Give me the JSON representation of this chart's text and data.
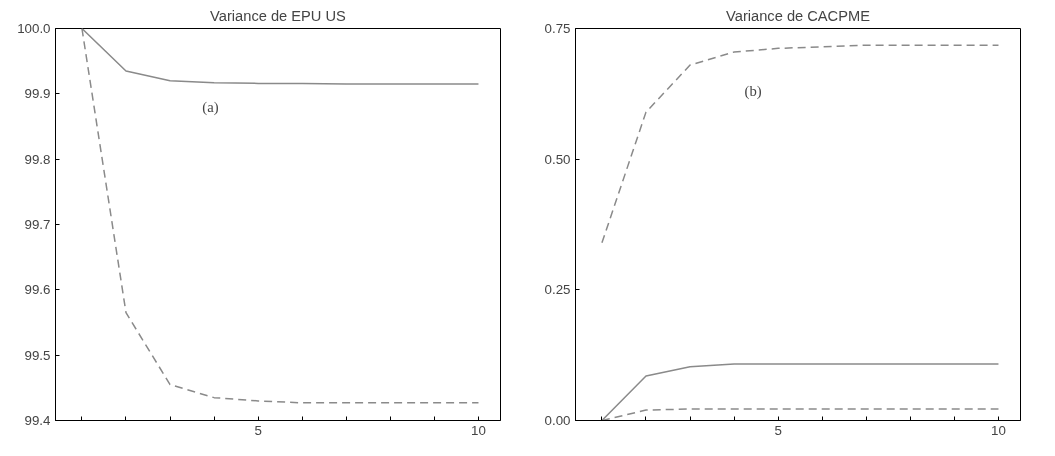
{
  "chart_data": [
    {
      "type": "line",
      "title": "Variance de EPU US",
      "annotations": [
        "(a)"
      ],
      "x": [
        1,
        2,
        3,
        4,
        5,
        6,
        7,
        8,
        9,
        10
      ],
      "xlim": [
        0.4,
        10.5
      ],
      "xticks": [
        {
          "value": 1,
          "label": null
        },
        {
          "value": 2,
          "label": null
        },
        {
          "value": 3,
          "label": null
        },
        {
          "value": 4,
          "label": null
        },
        5,
        {
          "value": 6,
          "label": null
        },
        {
          "value": 7,
          "label": null
        },
        {
          "value": 8,
          "label": null
        },
        {
          "value": 9,
          "label": null
        },
        10
      ],
      "ylim": [
        99.4,
        100.0
      ],
      "yticks": [
        {
          "value": 99.4,
          "label": "99.4"
        },
        {
          "value": 99.5,
          "label": "99.5"
        },
        {
          "value": 99.6,
          "label": "99.6"
        },
        {
          "value": 99.7,
          "label": "99.7"
        },
        {
          "value": 99.8,
          "label": "99.8"
        },
        {
          "value": 99.9,
          "label": "99.9"
        },
        {
          "value": 100.0,
          "label": "100.0"
        }
      ],
      "grid": false,
      "series": [
        {
          "color": "#8a8a8a",
          "line_style": "solid",
          "values": [
            100.0,
            99.935,
            99.92,
            99.917,
            99.916,
            99.916,
            99.915,
            99.915,
            99.915,
            99.915
          ]
        },
        {
          "color": "#8a8a8a",
          "line_style": "dashed",
          "values": [
            100.0,
            99.565,
            99.455,
            99.435,
            99.43,
            99.427,
            99.427,
            99.427,
            99.427,
            99.427
          ]
        }
      ]
    },
    {
      "type": "line",
      "title": "Variance de CACPME",
      "annotations": [
        "(b)"
      ],
      "x": [
        1,
        2,
        3,
        4,
        5,
        6,
        7,
        8,
        9,
        10
      ],
      "xlim": [
        0.4,
        10.5
      ],
      "xticks": [
        {
          "value": 1,
          "label": null
        },
        {
          "value": 2,
          "label": null
        },
        {
          "value": 3,
          "label": null
        },
        {
          "value": 4,
          "label": null
        },
        5,
        {
          "value": 6,
          "label": null
        },
        {
          "value": 7,
          "label": null
        },
        {
          "value": 8,
          "label": null
        },
        {
          "value": 9,
          "label": null
        },
        10
      ],
      "ylim": [
        0.0,
        0.75
      ],
      "yticks": [
        {
          "value": 0.0,
          "label": "0.00"
        },
        {
          "value": 0.25,
          "label": "0.25"
        },
        {
          "value": 0.5,
          "label": "0.50"
        },
        {
          "value": 0.75,
          "label": "0.75"
        }
      ],
      "grid": false,
      "series": [
        {
          "color": "#8a8a8a",
          "line_style": "dashed",
          "values": [
            0.34,
            0.59,
            0.68,
            0.705,
            0.712,
            0.715,
            0.718,
            0.718,
            0.718,
            0.718
          ]
        },
        {
          "color": "#8a8a8a",
          "line_style": "solid",
          "values": [
            0.0,
            0.085,
            0.103,
            0.108,
            0.108,
            0.108,
            0.108,
            0.108,
            0.108,
            0.108
          ]
        },
        {
          "color": "#8a8a8a",
          "line_style": "dashed",
          "values": [
            0.0,
            0.02,
            0.022,
            0.022,
            0.022,
            0.022,
            0.022,
            0.022,
            0.022,
            0.022
          ]
        }
      ]
    }
  ]
}
